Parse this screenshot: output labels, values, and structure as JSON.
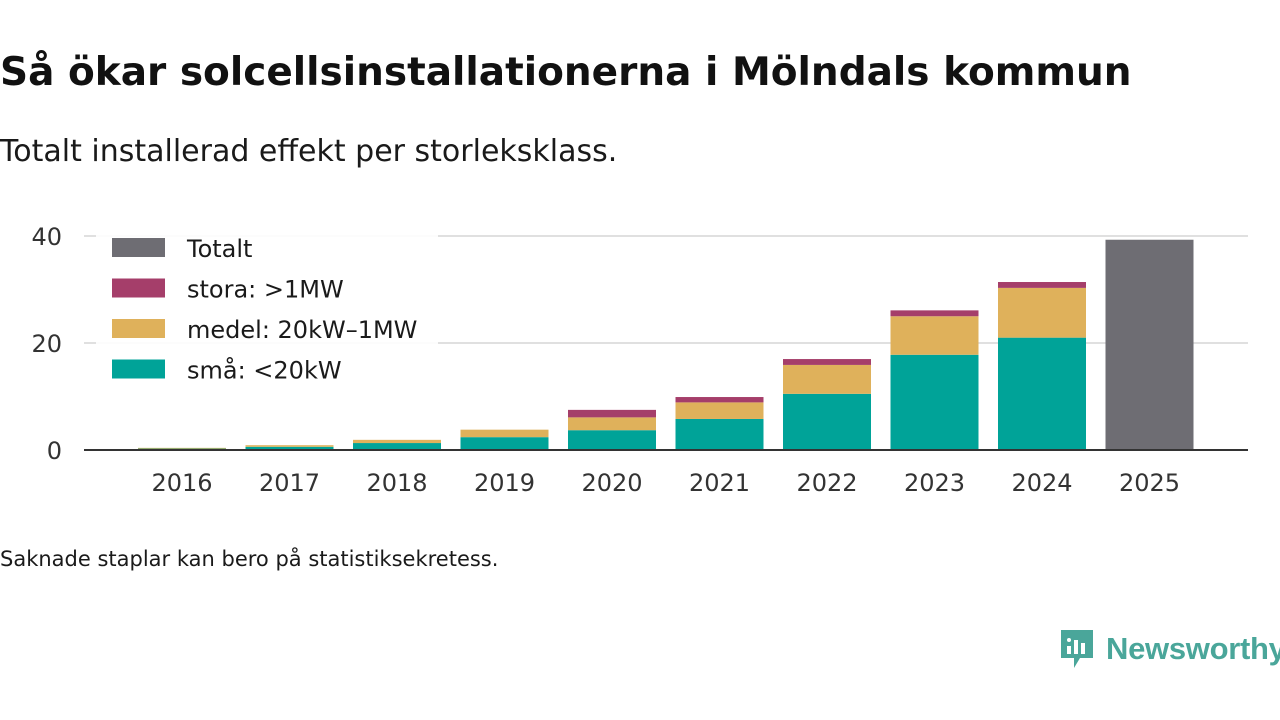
{
  "title": "Så ökar solcellsinstallationerna i Mölndals kommun",
  "subtitle": "Totalt installerad effekt per storleksklass.",
  "footnote": "Saknade staplar kan bero på statistiksekretess.",
  "brand": {
    "name": "Newsworthy",
    "icon": "newsworthy-logo-icon",
    "color": "#4aa69a"
  },
  "chart_data": {
    "type": "bar",
    "stacked": true,
    "title": "Så ökar solcellsinstallationerna i Mölndals kommun",
    "xlabel": "",
    "ylabel": "",
    "ylim": [
      0,
      40
    ],
    "yticks": [
      0,
      20,
      40
    ],
    "grid": true,
    "legend_position": "top-left",
    "categories": [
      "2016",
      "2017",
      "2018",
      "2019",
      "2020",
      "2021",
      "2022",
      "2023",
      "2024",
      "2025"
    ],
    "series": [
      {
        "name": "små: <20kW",
        "color": "#00a398",
        "values": [
          0.3,
          0.6,
          1.3,
          2.4,
          3.7,
          5.8,
          10.5,
          17.8,
          21.0,
          null
        ]
      },
      {
        "name": "medel: 20kW–1MW",
        "color": "#dfb15b",
        "values": [
          0.1,
          0.3,
          0.6,
          1.4,
          2.4,
          3.1,
          5.4,
          7.2,
          9.3,
          null
        ]
      },
      {
        "name": "stora: >1MW",
        "color": "#a53e6a",
        "values": [
          0,
          0,
          0,
          0,
          1.4,
          1.0,
          1.1,
          1.1,
          1.1,
          null
        ]
      },
      {
        "name": "Totalt",
        "color": "#6e6d73",
        "values": [
          null,
          null,
          null,
          null,
          null,
          null,
          null,
          null,
          null,
          39.3
        ]
      }
    ],
    "legend": [
      "Totalt",
      "stora: >1MW",
      "medel: 20kW–1MW",
      "små: <20kW"
    ]
  }
}
